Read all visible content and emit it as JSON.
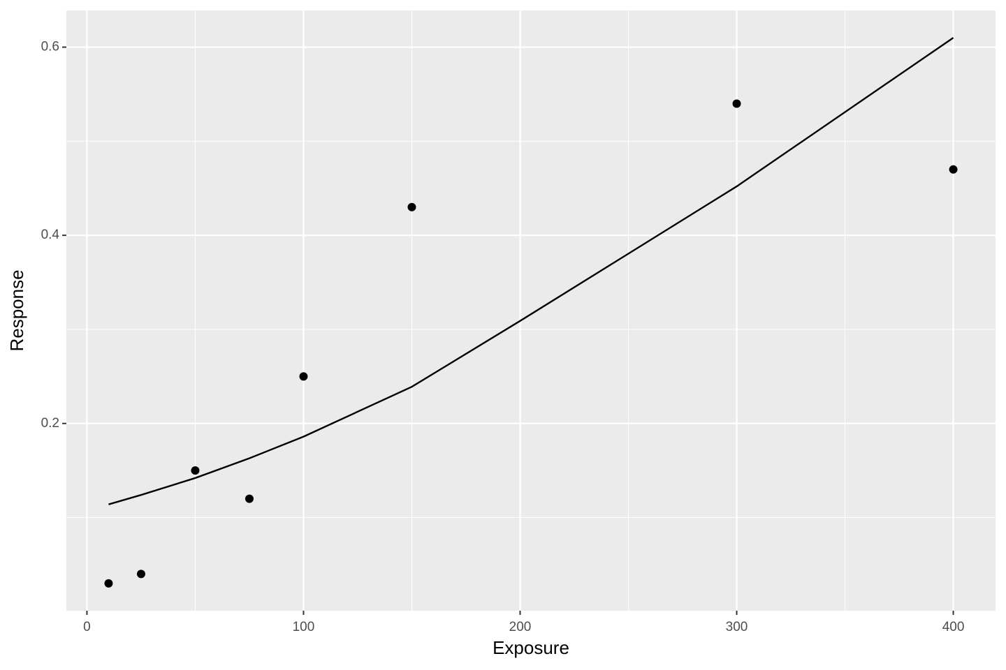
{
  "chart_data": {
    "type": "scatter",
    "x_label": "Exposure",
    "y_label": "Response",
    "xlim": [
      -9.5,
      419.5
    ],
    "xticks": [
      0,
      100,
      200,
      300,
      400
    ],
    "x_minor_ticks": [
      50,
      150,
      250,
      350
    ],
    "ylim": [
      0.001,
      0.639
    ],
    "yticks": [
      0.2,
      0.4,
      0.6
    ],
    "y_minor_ticks": [
      0.1,
      0.3,
      0.5
    ],
    "grid": true,
    "panel_color": "#ebebeb",
    "series": [
      {
        "type": "points",
        "color": "#000000",
        "x": [
          10,
          25,
          50,
          75,
          100,
          150,
          300,
          400
        ],
        "values": [
          0.03,
          0.04,
          0.15,
          0.12,
          0.25,
          0.43,
          0.54,
          0.47
        ]
      },
      {
        "type": "line",
        "color": "#000000",
        "x": [
          10,
          25,
          50,
          75,
          100,
          150,
          200,
          300,
          400
        ],
        "values": [
          0.114,
          0.124,
          0.142,
          0.163,
          0.186,
          0.239,
          0.309,
          0.452,
          0.61
        ]
      }
    ]
  }
}
